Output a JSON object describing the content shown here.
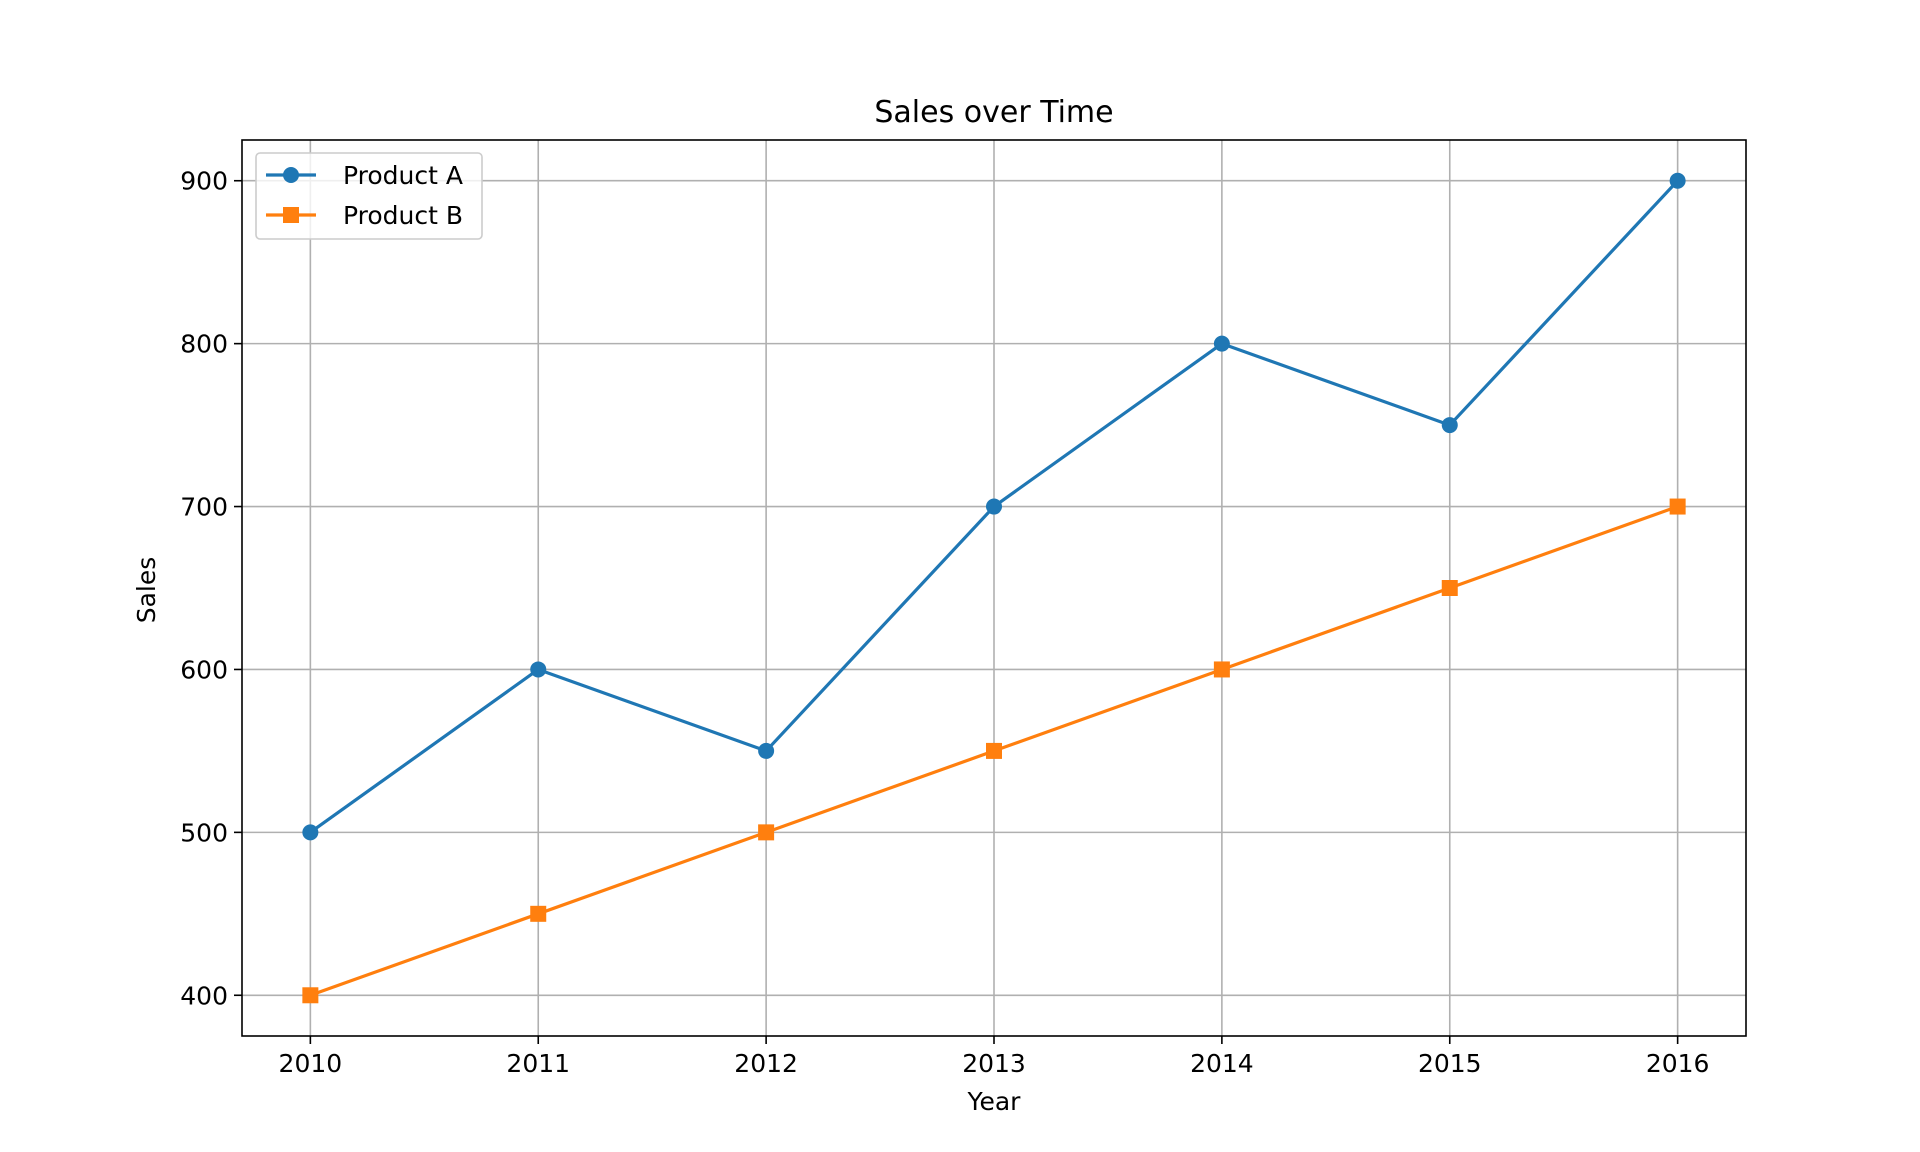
{
  "chart_data": {
    "type": "line",
    "title": "Sales over Time",
    "xlabel": "Year",
    "ylabel": "Sales",
    "x": [
      2010,
      2011,
      2012,
      2013,
      2014,
      2015,
      2016
    ],
    "xticks": [
      "2010",
      "2011",
      "2012",
      "2013",
      "2014",
      "2015",
      "2016"
    ],
    "yticks": [
      "400",
      "500",
      "600",
      "700",
      "800",
      "900"
    ],
    "ylim": [
      375,
      925
    ],
    "xlim": [
      2009.7,
      2016.3
    ],
    "grid": true,
    "legend_position": "top-left",
    "series": [
      {
        "name": "Product A",
        "color": "#1f77b4",
        "marker": "circle",
        "values": [
          500,
          600,
          550,
          700,
          800,
          750,
          900
        ]
      },
      {
        "name": "Product B",
        "color": "#ff7f0e",
        "marker": "square",
        "values": [
          400,
          450,
          500,
          550,
          600,
          650,
          700
        ]
      }
    ]
  }
}
